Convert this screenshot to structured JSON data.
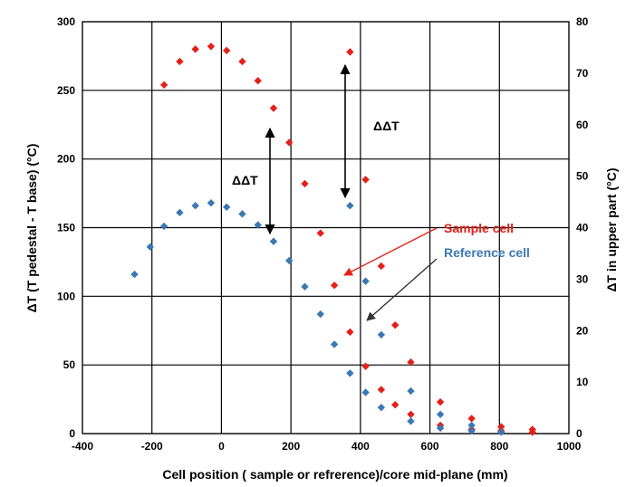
{
  "chart_data": {
    "type": "scatter",
    "xlabel": "Cell position ( sample or refrerence)/core mid-plane (mm)",
    "ylabel_left": "ΔT (T pedestal - T base) (°C)",
    "ylabel_right": "ΔT in upper part (°C)",
    "xlim": [
      -400,
      1000
    ],
    "ylim_left": [
      0,
      300
    ],
    "ylim_right": [
      0,
      80
    ],
    "x_ticks": [
      "-400",
      "-200",
      "0",
      "200",
      "400",
      "600",
      "800",
      "1000"
    ],
    "y_left_ticks": [
      "0",
      "50",
      "100",
      "150",
      "200",
      "250",
      "300"
    ],
    "y_right_ticks": [
      "0",
      "10",
      "20",
      "30",
      "40",
      "50",
      "60",
      "70",
      "80"
    ],
    "grid": true,
    "series": [
      {
        "color": "#e32119",
        "points": [
          [
            -165,
            254
          ],
          [
            -120,
            271
          ],
          [
            -75,
            280
          ],
          [
            -30,
            282
          ],
          [
            15,
            279
          ],
          [
            60,
            271
          ],
          [
            105,
            257
          ],
          [
            150,
            237
          ],
          [
            195,
            212
          ],
          [
            240,
            182
          ],
          [
            285,
            146
          ],
          [
            325,
            108
          ],
          [
            370,
            74
          ],
          [
            415,
            49
          ],
          [
            460,
            32
          ],
          [
            500,
            21
          ],
          [
            545,
            14
          ],
          [
            630,
            6
          ],
          [
            720,
            3
          ],
          [
            805,
            2
          ],
          [
            895,
            1
          ],
          [
            370,
            278
          ],
          [
            415,
            185
          ],
          [
            460,
            122
          ],
          [
            500,
            79
          ],
          [
            545,
            52
          ],
          [
            630,
            23
          ],
          [
            720,
            11
          ],
          [
            805,
            5
          ],
          [
            895,
            3
          ]
        ]
      },
      {
        "color": "#3b78b4",
        "points": [
          [
            -250,
            116
          ],
          [
            -205,
            136
          ],
          [
            -165,
            151
          ],
          [
            -120,
            161
          ],
          [
            -75,
            166
          ],
          [
            -30,
            168
          ],
          [
            15,
            165
          ],
          [
            60,
            160
          ],
          [
            105,
            152
          ],
          [
            150,
            140
          ],
          [
            195,
            126
          ],
          [
            240,
            107
          ],
          [
            285,
            87
          ],
          [
            325,
            65
          ],
          [
            370,
            44
          ],
          [
            415,
            30
          ],
          [
            460,
            19
          ],
          [
            545,
            9
          ],
          [
            630,
            4
          ],
          [
            720,
            2
          ],
          [
            805,
            1
          ],
          [
            370,
            166
          ],
          [
            415,
            111
          ],
          [
            460,
            72
          ],
          [
            545,
            31
          ],
          [
            630,
            14
          ],
          [
            720,
            6
          ]
        ]
      }
    ],
    "annotations": {
      "ddt_label": "ΔΔT",
      "sample_label": "Sample cell",
      "reference_label": "Reference cell"
    }
  },
  "colors": {
    "sample": "#e32119",
    "reference": "#3b78b4",
    "grid": "#000000"
  }
}
